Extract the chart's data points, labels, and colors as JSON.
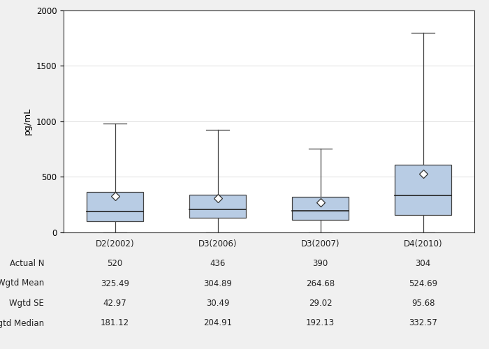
{
  "ylabel": "pg/mL",
  "categories": [
    "D2(2002)",
    "D3(2006)",
    "D3(2007)",
    "D4(2010)"
  ],
  "ylim": [
    0,
    2000
  ],
  "yticks": [
    0,
    500,
    1000,
    1500,
    2000
  ],
  "box_color": "#b8cce4",
  "box_edge_color": "#444444",
  "whisker_color": "#444444",
  "median_color": "#222222",
  "mean_marker_color": "#ffffff",
  "mean_marker_edge": "#333333",
  "boxes": [
    {
      "q1": 100,
      "median": 185,
      "q3": 365,
      "whisker_low": 0,
      "whisker_high": 980,
      "mean": 325.49
    },
    {
      "q1": 130,
      "median": 205,
      "q3": 335,
      "whisker_low": 0,
      "whisker_high": 920,
      "mean": 304.89
    },
    {
      "q1": 110,
      "median": 190,
      "q3": 315,
      "whisker_low": 0,
      "whisker_high": 750,
      "mean": 264.68
    },
    {
      "q1": 155,
      "median": 330,
      "q3": 610,
      "whisker_low": 0,
      "whisker_high": 1800,
      "mean": 524.69
    }
  ],
  "table_rows": [
    {
      "label": "Actual N",
      "values": [
        "520",
        "436",
        "390",
        "304"
      ]
    },
    {
      "label": "Wgtd Mean",
      "values": [
        "325.49",
        "304.89",
        "264.68",
        "524.69"
      ]
    },
    {
      "label": "Wgtd SE",
      "values": [
        "42.97",
        "30.49",
        "29.02",
        "95.68"
      ]
    },
    {
      "label": "Wgtd Median",
      "values": [
        "181.12",
        "204.91",
        "192.13",
        "332.57"
      ]
    }
  ],
  "box_width": 0.55,
  "fig_width": 7.0,
  "fig_height": 5.0,
  "background_color": "#f0f0f0",
  "plot_background": "#ffffff",
  "grid_color": "#d8d8d8",
  "spine_color": "#333333",
  "font_size": 8.5
}
